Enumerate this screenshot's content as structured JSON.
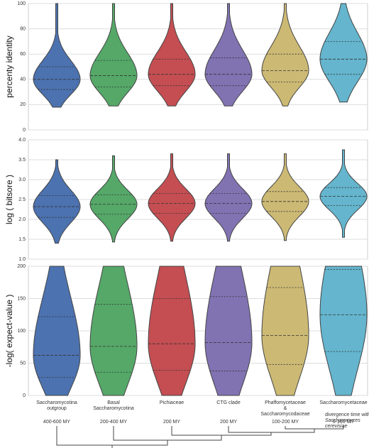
{
  "chart_data": [
    {
      "type": "violin",
      "ylabel": "percenty identity",
      "ylim": [
        0,
        100
      ],
      "yticks": [
        0,
        20,
        40,
        60,
        80,
        100
      ],
      "grid": true,
      "violins": [
        {
          "color": "#4c72b0",
          "min": 18,
          "q1": 32,
          "median": 40,
          "q3": 50,
          "max": 100
        },
        {
          "color": "#55a868",
          "min": 19,
          "q1": 34,
          "median": 43,
          "q3": 55,
          "max": 100
        },
        {
          "color": "#c44e52",
          "min": 19,
          "q1": 35,
          "median": 44,
          "q3": 56,
          "max": 100
        },
        {
          "color": "#8172b2",
          "min": 19,
          "q1": 35,
          "median": 44,
          "q3": 57,
          "max": 100
        },
        {
          "color": "#ccb974",
          "min": 19,
          "q1": 38,
          "median": 47,
          "q3": 60,
          "max": 100
        },
        {
          "color": "#64b5cd",
          "min": 22,
          "q1": 44,
          "median": 56,
          "q3": 70,
          "max": 100
        }
      ]
    },
    {
      "type": "violin",
      "ylabel": "log ( bitsore )",
      "ylim": [
        1,
        4
      ],
      "yticks": [
        {
          "value": 1,
          "label": "1.0"
        },
        {
          "value": 1.5,
          "label": "1.5"
        },
        {
          "value": 2,
          "label": "2.0"
        },
        {
          "value": 2.5,
          "label": "2.5"
        },
        {
          "value": 3,
          "label": "3.0"
        },
        {
          "value": 3.5,
          "label": "3.5"
        },
        {
          "value": 4,
          "label": "4.0"
        }
      ],
      "grid": true,
      "violins": [
        {
          "color": "#4c72b0",
          "min": 1.4,
          "q1": 2.05,
          "median": 2.32,
          "q3": 2.6,
          "max": 3.5
        },
        {
          "color": "#55a868",
          "min": 1.43,
          "q1": 2.13,
          "median": 2.38,
          "q3": 2.62,
          "max": 3.6
        },
        {
          "color": "#c44e52",
          "min": 1.45,
          "q1": 2.15,
          "median": 2.4,
          "q3": 2.65,
          "max": 3.65
        },
        {
          "color": "#8172b2",
          "min": 1.45,
          "q1": 2.15,
          "median": 2.4,
          "q3": 2.65,
          "max": 3.65
        },
        {
          "color": "#ccb974",
          "min": 1.47,
          "q1": 2.2,
          "median": 2.45,
          "q3": 2.7,
          "max": 3.65
        },
        {
          "color": "#64b5cd",
          "min": 1.55,
          "q1": 2.35,
          "median": 2.58,
          "q3": 2.8,
          "max": 3.75
        }
      ]
    },
    {
      "type": "violin",
      "ylabel": "-log( expect-value )",
      "ylim": [
        0,
        200
      ],
      "yticks": [
        0,
        50,
        100,
        150,
        200
      ],
      "grid": true,
      "violins": [
        {
          "color": "#4c72b0",
          "min": 0,
          "q1": 28,
          "median": 62,
          "q3": 122,
          "max": 200
        },
        {
          "color": "#55a868",
          "min": 0,
          "q1": 36,
          "median": 76,
          "q3": 141,
          "max": 200
        },
        {
          "color": "#c44e52",
          "min": 0,
          "q1": 39,
          "median": 80,
          "q3": 150,
          "max": 200
        },
        {
          "color": "#8172b2",
          "min": 0,
          "q1": 38,
          "median": 82,
          "q3": 153,
          "max": 200
        },
        {
          "color": "#ccb974",
          "min": 0,
          "q1": 48,
          "median": 93,
          "q3": 167,
          "max": 200
        },
        {
          "color": "#64b5cd",
          "min": 0,
          "q1": 68,
          "median": 125,
          "q3": 195,
          "max": 200
        }
      ]
    }
  ],
  "x_axis": {
    "categories": [
      [
        "Saccharomycotina",
        "outgroup"
      ],
      [
        "Basal",
        "Saccharomycotina"
      ],
      [
        "Pichiaceae"
      ],
      [
        "CTG clade"
      ],
      [
        "Phaffomycetaceae",
        "&",
        "Saccharomycodaceae"
      ],
      [
        "Saccharomycetaceae"
      ]
    ],
    "divergence_times": [
      "400-600 MY",
      "200-400 MY",
      "200 MY",
      "200 MY",
      "100-200 MY",
      "0-100 MY"
    ],
    "note": [
      "divergence time with",
      "Saccharomyces",
      "cerevisiae"
    ]
  }
}
